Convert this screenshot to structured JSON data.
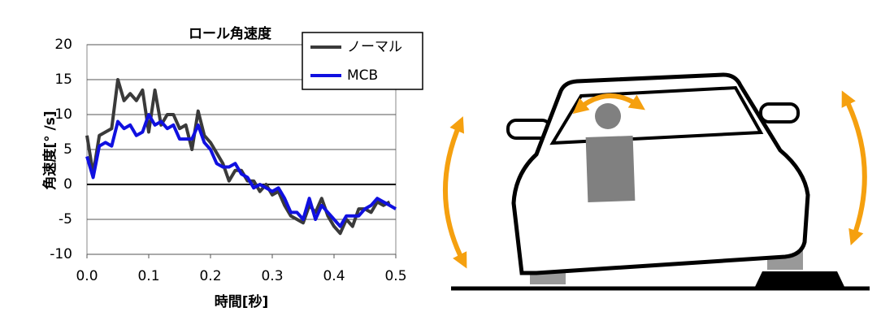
{
  "chart_data": {
    "type": "line",
    "title": "ロール角速度",
    "y_label": "角速度[° /s]",
    "x_label": "時間[秒]",
    "x": [
      0,
      0.01,
      0.02,
      0.03,
      0.04,
      0.05,
      0.06,
      0.07,
      0.08,
      0.09,
      0.1,
      0.11,
      0.12,
      0.13,
      0.14,
      0.15,
      0.16,
      0.17,
      0.18,
      0.19,
      0.2,
      0.21,
      0.22,
      0.23,
      0.24,
      0.25,
      0.26,
      0.27,
      0.28,
      0.29,
      0.3,
      0.31,
      0.32,
      0.33,
      0.34,
      0.35,
      0.36,
      0.37,
      0.38,
      0.39,
      0.4,
      0.41,
      0.42,
      0.43,
      0.44,
      0.45,
      0.46,
      0.47,
      0.48,
      0.49,
      0.5
    ],
    "series": [
      {
        "name": "ノーマル",
        "color": "#3a3a3a",
        "values": [
          7,
          1.5,
          7,
          7.5,
          8,
          15,
          12,
          13,
          12,
          13.5,
          7.5,
          13.5,
          8.5,
          10,
          10,
          8,
          8.5,
          5,
          10.5,
          7,
          6,
          4.5,
          3,
          0.5,
          2,
          2,
          0.5,
          0.5,
          -1,
          0,
          -1.5,
          -1,
          -3,
          -4.5,
          -5,
          -5.5,
          -3,
          -4,
          -2,
          -4.5,
          -6,
          -7,
          -5,
          -6,
          -3.5,
          -3.5,
          -4,
          -2.5,
          -3,
          -2.5,
          null
        ]
      },
      {
        "name": "MCB",
        "color": "#1010e0",
        "values": [
          4,
          1,
          5.5,
          6,
          5.5,
          9,
          8,
          8.5,
          7,
          7.5,
          10,
          8.5,
          9,
          8,
          8.5,
          6.5,
          6.5,
          6.5,
          8.5,
          6,
          5,
          3,
          2.5,
          2.5,
          3,
          1.5,
          1,
          -0.5,
          0,
          -0.5,
          -1,
          -0.5,
          -2,
          -4,
          -4,
          -5,
          -2,
          -5,
          -3,
          -4,
          -5,
          -6,
          -4.5,
          -4.5,
          -4.5,
          -3.5,
          -3,
          -2,
          -2.5,
          -3,
          -3.5
        ]
      }
    ],
    "xlim": [
      0,
      0.5
    ],
    "xticks": [
      {
        "value": 0,
        "label": "0.0"
      },
      0.1,
      0.2,
      0.3,
      0.4,
      0.5
    ],
    "ylim": [
      -10,
      20
    ],
    "yticks": [
      -10,
      -5,
      0,
      5,
      10,
      15,
      20
    ],
    "grid": true,
    "legend": "upper-right"
  }
}
